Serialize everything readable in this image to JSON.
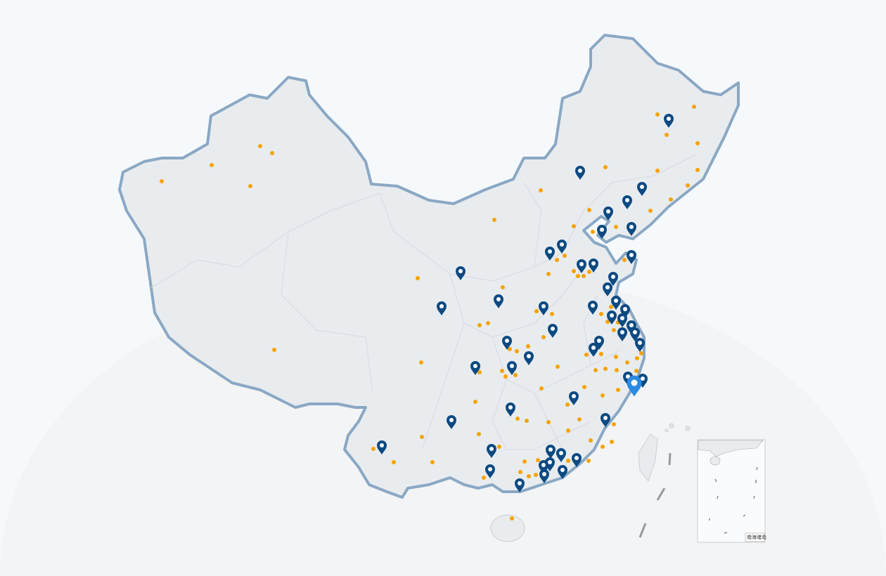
{
  "map": {
    "inset_label": "南海诸岛",
    "colors": {
      "land": "#e9ecef",
      "border": "#8aa8c4",
      "marker": "#0d4a82",
      "marker_selected": "#2b8ae0",
      "dot": "#f5a300"
    },
    "marker_icon": "map-pin-icon",
    "selected_marker_count": 1
  }
}
